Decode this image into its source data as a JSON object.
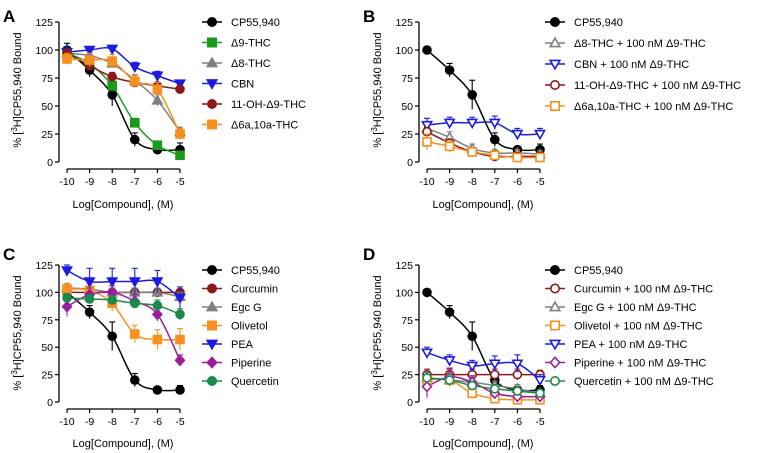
{
  "chart_data": [
    {
      "panel": "A",
      "type": "scatter",
      "ylabel": "% [3H]CP55,940 Bound",
      "xlabel": "Log[Compound], (M)",
      "x": [
        -10,
        -9,
        -8,
        -7,
        -6,
        -5
      ],
      "xlim": [
        -10,
        -5
      ],
      "ylim": [
        0,
        125
      ],
      "yticks": [
        0,
        25,
        50,
        75,
        100,
        125
      ],
      "series": [
        {
          "name": "CP55,940",
          "color": "#000000",
          "marker": "circle",
          "filled": true,
          "values": [
            100,
            82,
            60,
            20,
            11,
            11
          ],
          "err": [
            6,
            6,
            10,
            6,
            3,
            6
          ]
        },
        {
          "name": "Δ9-THC",
          "color": "#1a9a1a",
          "marker": "square",
          "filled": true,
          "values": [
            97,
            88,
            68,
            35,
            15,
            6
          ],
          "err": [
            6,
            5,
            5,
            4,
            3,
            3
          ]
        },
        {
          "name": "Δ8-THC",
          "color": "#808080",
          "marker": "triangle-up",
          "filled": true,
          "values": [
            97,
            95,
            88,
            73,
            55,
            27
          ],
          "err": [
            4,
            4,
            4,
            5,
            5,
            4
          ]
        },
        {
          "name": "CBN",
          "color": "#1c1ce0",
          "marker": "triangle-down",
          "filled": true,
          "values": [
            98,
            100,
            101,
            85,
            77,
            70
          ],
          "err": [
            5,
            3,
            3,
            4,
            4,
            3
          ]
        },
        {
          "name": "11-OH-Δ9-THC",
          "color": "#8b1a1a",
          "marker": "circle",
          "filled": true,
          "values": [
            97,
            86,
            76,
            71,
            68,
            65
          ],
          "err": [
            4,
            4,
            4,
            3,
            3,
            3
          ]
        },
        {
          "name": "Δ6a,10a-THC",
          "color": "#f7901e",
          "marker": "square",
          "filled": true,
          "values": [
            92,
            91,
            90,
            72,
            65,
            25
          ],
          "err": [
            5,
            6,
            6,
            5,
            6,
            5
          ]
        }
      ]
    },
    {
      "panel": "B",
      "type": "scatter",
      "ylabel": "% [3H]CP55,940 Bound",
      "xlabel": "Log[Compound], (M)",
      "x": [
        -10,
        -9,
        -8,
        -7,
        -6,
        -5
      ],
      "xlim": [
        -10,
        -5
      ],
      "ylim": [
        0,
        125
      ],
      "yticks": [
        0,
        25,
        50,
        75,
        100,
        125
      ],
      "series": [
        {
          "name": "CP55,940",
          "color": "#000000",
          "marker": "circle",
          "filled": true,
          "values": [
            100,
            82,
            60,
            20,
            11,
            11
          ],
          "err": [
            3,
            6,
            13,
            6,
            3,
            5
          ]
        },
        {
          "name": "Δ8-THC + 100 nM Δ9-THC",
          "color": "#808080",
          "marker": "triangle-up",
          "filled": false,
          "values": [
            30,
            22,
            12,
            8,
            8,
            7
          ],
          "err": [
            6,
            5,
            4,
            3,
            3,
            3
          ]
        },
        {
          "name": "CBN + 100 nM Δ9-THC",
          "color": "#1c1ce0",
          "marker": "triangle-down",
          "filled": false,
          "values": [
            33,
            35,
            35,
            35,
            25,
            25
          ],
          "err": [
            6,
            5,
            5,
            6,
            5,
            5
          ]
        },
        {
          "name": "11-OH-Δ9-THC + 100 nM Δ9-THC",
          "color": "#8b1a1a",
          "marker": "circle",
          "filled": false,
          "values": [
            27,
            17,
            9,
            5,
            5,
            5
          ],
          "err": [
            4,
            3,
            3,
            2,
            2,
            2
          ]
        },
        {
          "name": "Δ6a,10a-THC + 100 nM Δ9-THC",
          "color": "#f7901e",
          "marker": "square",
          "filled": false,
          "values": [
            18,
            14,
            9,
            6,
            4,
            4
          ],
          "err": [
            7,
            5,
            3,
            3,
            2,
            2
          ]
        }
      ]
    },
    {
      "panel": "C",
      "type": "scatter",
      "ylabel": "% [3H]CP55,940 Bound",
      "xlabel": "Log[Compound], (M)",
      "x": [
        -10,
        -9,
        -8,
        -7,
        -6,
        -5
      ],
      "xlim": [
        -10,
        -5
      ],
      "ylim": [
        0,
        125
      ],
      "yticks": [
        0,
        25,
        50,
        75,
        100,
        125
      ],
      "series": [
        {
          "name": "CP55,940",
          "color": "#000000",
          "marker": "circle",
          "filled": true,
          "values": [
            100,
            82,
            60,
            20,
            11,
            11
          ],
          "err": [
            4,
            6,
            13,
            6,
            3,
            4
          ]
        },
        {
          "name": "Curcumin",
          "color": "#8b1a1a",
          "marker": "circle",
          "filled": true,
          "values": [
            100,
            100,
            100,
            100,
            100,
            100
          ],
          "err": [
            4,
            4,
            3,
            3,
            3,
            3
          ]
        },
        {
          "name": "Egc G",
          "color": "#808080",
          "marker": "triangle-up",
          "filled": true,
          "values": [
            104,
            103,
            100,
            100,
            100,
            96
          ],
          "err": [
            4,
            5,
            4,
            4,
            4,
            4
          ]
        },
        {
          "name": "Olivetol",
          "color": "#f7901e",
          "marker": "square",
          "filled": true,
          "values": [
            103,
            102,
            90,
            62,
            57,
            57
          ],
          "err": [
            5,
            6,
            7,
            8,
            9,
            10
          ]
        },
        {
          "name": "PEA",
          "color": "#1c1ce0",
          "marker": "triangle-down",
          "filled": true,
          "values": [
            120,
            110,
            110,
            110,
            110,
            95
          ],
          "err": [
            5,
            12,
            12,
            12,
            10,
            10
          ]
        },
        {
          "name": "Piperine",
          "color": "#9c1c9c",
          "marker": "diamond",
          "filled": true,
          "values": [
            87,
            98,
            100,
            92,
            80,
            38
          ],
          "err": [
            9,
            6,
            6,
            6,
            6,
            5
          ]
        },
        {
          "name": "Quercetin",
          "color": "#1a8a4a",
          "marker": "circle",
          "filled": true,
          "values": [
            95,
            94,
            93,
            90,
            88,
            80
          ],
          "err": [
            4,
            4,
            4,
            4,
            5,
            5
          ]
        }
      ]
    },
    {
      "panel": "D",
      "type": "scatter",
      "ylabel": "% [3H]CP55,940 Bound",
      "xlabel": "Log[Compound], (M)",
      "x": [
        -10,
        -9,
        -8,
        -7,
        -6,
        -5
      ],
      "xlim": [
        -10,
        -5
      ],
      "ylim": [
        0,
        125
      ],
      "yticks": [
        0,
        25,
        50,
        75,
        100,
        125
      ],
      "series": [
        {
          "name": "CP55,940",
          "color": "#000000",
          "marker": "circle",
          "filled": true,
          "values": [
            100,
            82,
            60,
            20,
            11,
            11
          ],
          "err": [
            3,
            6,
            13,
            6,
            3,
            4
          ]
        },
        {
          "name": "Curcumin + 100 nM Δ9-THC",
          "color": "#8b1a1a",
          "marker": "circle",
          "filled": false,
          "values": [
            25,
            25,
            25,
            25,
            25,
            25
          ],
          "err": [
            5,
            5,
            5,
            5,
            5,
            4
          ]
        },
        {
          "name": "Egc G + 100 nM Δ9-THC",
          "color": "#808080",
          "marker": "triangle-up",
          "filled": false,
          "values": [
            22,
            20,
            18,
            15,
            12,
            8
          ],
          "err": [
            5,
            5,
            5,
            4,
            4,
            3
          ]
        },
        {
          "name": "Olivetol + 100 nM Δ9-THC",
          "color": "#f7901e",
          "marker": "square",
          "filled": false,
          "values": [
            20,
            20,
            8,
            3,
            2,
            2
          ],
          "err": [
            5,
            6,
            5,
            3,
            2,
            2
          ]
        },
        {
          "name": "PEA + 100 nM Δ9-THC",
          "color": "#1c1ce0",
          "marker": "triangle-down",
          "filled": false,
          "values": [
            45,
            38,
            33,
            35,
            35,
            20
          ],
          "err": [
            5,
            5,
            5,
            7,
            8,
            5
          ]
        },
        {
          "name": "Piperine + 100 nM Δ9-THC",
          "color": "#9c1c9c",
          "marker": "diamond",
          "filled": false,
          "values": [
            14,
            23,
            18,
            8,
            5,
            5
          ],
          "err": [
            10,
            8,
            6,
            4,
            3,
            3
          ]
        },
        {
          "name": "Quercetin + 100 nM Δ9-THC",
          "color": "#1a8a4a",
          "marker": "circle",
          "filled": false,
          "values": [
            22,
            20,
            15,
            12,
            10,
            8
          ],
          "err": [
            5,
            5,
            4,
            4,
            3,
            3
          ]
        }
      ]
    }
  ]
}
